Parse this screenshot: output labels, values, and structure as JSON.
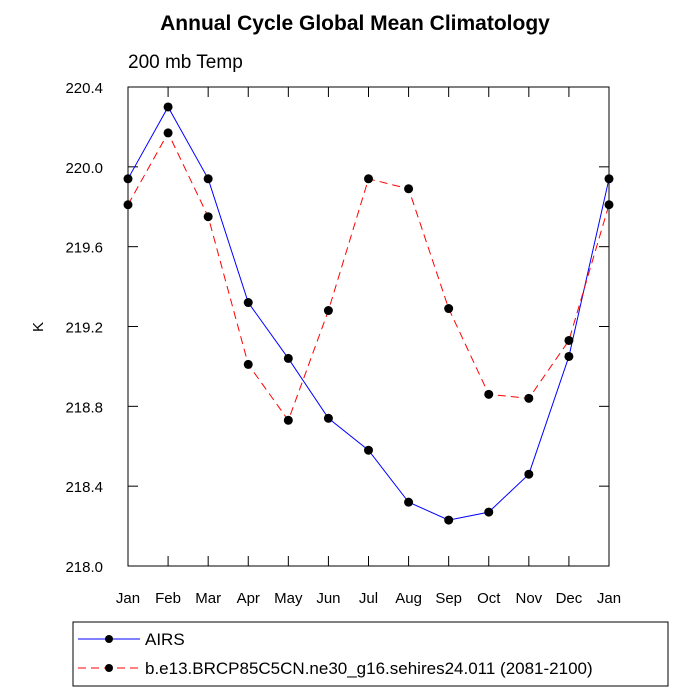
{
  "chart_data": {
    "type": "line",
    "title": "Annual Cycle Global Mean Climatology",
    "subtitle": "200 mb Temp",
    "xlabel": "",
    "ylabel": "K",
    "categories": [
      "Jan",
      "Feb",
      "Mar",
      "Apr",
      "May",
      "Jun",
      "Jul",
      "Aug",
      "Sep",
      "Oct",
      "Nov",
      "Dec",
      "Jan"
    ],
    "ylim": [
      218.0,
      220.4
    ],
    "yticks": [
      218.0,
      218.4,
      218.8,
      219.2,
      219.6,
      220.0,
      220.4
    ],
    "ytick_labels": [
      "218.0",
      "218.4",
      "218.8",
      "219.2",
      "219.6",
      "220.0",
      "220.4"
    ],
    "series": [
      {
        "name": "AIRS",
        "color": "#0000ff",
        "dash": "solid",
        "marker": "circle",
        "values": [
          219.94,
          220.3,
          219.94,
          219.32,
          219.04,
          218.74,
          218.58,
          218.32,
          218.23,
          218.27,
          218.46,
          219.05,
          219.94
        ]
      },
      {
        "name": "b.e13.BRCP85C5CN.ne30_g16.sehires24.011 (2081-2100)",
        "color": "#ff0000",
        "dash": "dashed",
        "marker": "circle",
        "values": [
          219.81,
          220.17,
          219.75,
          219.01,
          218.73,
          219.28,
          219.94,
          219.89,
          219.29,
          218.86,
          218.84,
          219.13,
          219.81
        ]
      }
    ],
    "legend": "bottom-left"
  }
}
